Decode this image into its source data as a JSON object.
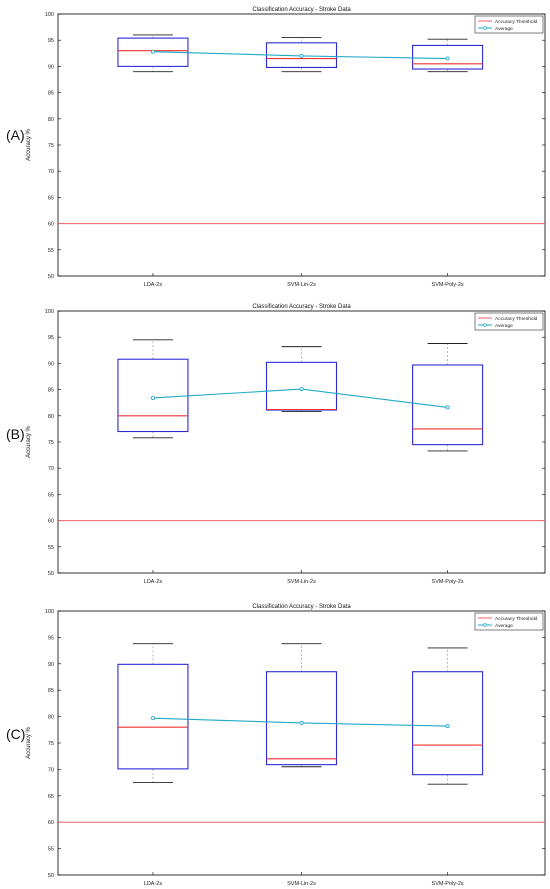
{
  "panels": [
    "(A)",
    "(B)",
    "(C)"
  ],
  "chart_data": [
    {
      "type": "box",
      "title": "Classification Accuracy - Stroke Data",
      "ylabel": "Accuracy %",
      "xlabel": "",
      "ylim": [
        50,
        100
      ],
      "yticks": [
        50,
        55,
        60,
        65,
        70,
        75,
        80,
        85,
        90,
        95,
        100
      ],
      "categories": [
        "LDA-2s",
        "SVM-Lin-2s",
        "SVM-Poly-2s"
      ],
      "boxes": [
        {
          "min": 89.0,
          "q1": 90.0,
          "median": 93.0,
          "q3": 95.4,
          "max": 96.0
        },
        {
          "min": 89.0,
          "q1": 89.8,
          "median": 91.5,
          "q3": 94.5,
          "max": 95.5
        },
        {
          "min": 89.0,
          "q1": 89.5,
          "median": 90.5,
          "q3": 94.0,
          "max": 95.2
        }
      ],
      "average": [
        92.8,
        92.0,
        91.5
      ],
      "threshold": 60,
      "legend": [
        "Accuracy Threshold",
        "Average"
      ],
      "legend_position": "top-right",
      "colors": {
        "threshold": "#f06060",
        "average": "#21a8c8",
        "box": "#2b2bd6",
        "median": "#ee3333",
        "whisker": "#222222"
      }
    },
    {
      "type": "box",
      "title": "Classification Accuracy - Stroke Data",
      "ylabel": "Accuracy %",
      "xlabel": "",
      "ylim": [
        50,
        100
      ],
      "yticks": [
        50,
        55,
        60,
        65,
        70,
        75,
        80,
        85,
        90,
        95,
        100
      ],
      "categories": [
        "LDA-2s",
        "SVM-Lin-2s",
        "SVM-Poly-2s"
      ],
      "boxes": [
        {
          "min": 75.8,
          "q1": 77.0,
          "median": 80.0,
          "q3": 90.8,
          "max": 94.5
        },
        {
          "min": 80.8,
          "q1": 81.1,
          "median": 81.2,
          "q3": 90.2,
          "max": 93.2
        },
        {
          "min": 73.3,
          "q1": 74.5,
          "median": 77.5,
          "q3": 89.7,
          "max": 93.8
        }
      ],
      "average": [
        83.4,
        85.1,
        81.6
      ],
      "threshold": 60,
      "legend": [
        "Accuracy Threshold",
        "Average"
      ],
      "legend_position": "top-right",
      "colors": {
        "threshold": "#f06060",
        "average": "#21a8c8",
        "box": "#2b2bd6",
        "median": "#ee3333",
        "whisker": "#222222"
      }
    },
    {
      "type": "box",
      "title": "Classification Accuracy - Stroke Data",
      "ylabel": "Accuracy %",
      "xlabel": "",
      "ylim": [
        50,
        100
      ],
      "yticks": [
        50,
        55,
        60,
        65,
        70,
        75,
        80,
        85,
        90,
        95,
        100
      ],
      "categories": [
        "LDA-2s",
        "SVM-Lin-2s",
        "SVM-Poly-2s"
      ],
      "boxes": [
        {
          "min": 67.5,
          "q1": 70.1,
          "median": 78.0,
          "q3": 89.9,
          "max": 93.8
        },
        {
          "min": 70.5,
          "q1": 70.9,
          "median": 72.0,
          "q3": 88.5,
          "max": 93.8
        },
        {
          "min": 67.2,
          "q1": 69.0,
          "median": 74.6,
          "q3": 88.5,
          "max": 93.0
        }
      ],
      "average": [
        79.7,
        78.8,
        78.2
      ],
      "threshold": 60,
      "legend": [
        "Accuracy Threshold",
        "Average"
      ],
      "legend_position": "top-right",
      "colors": {
        "threshold": "#f06060",
        "average": "#21a8c8",
        "box": "#2b2bd6",
        "median": "#ee3333",
        "whisker": "#222222"
      }
    }
  ]
}
